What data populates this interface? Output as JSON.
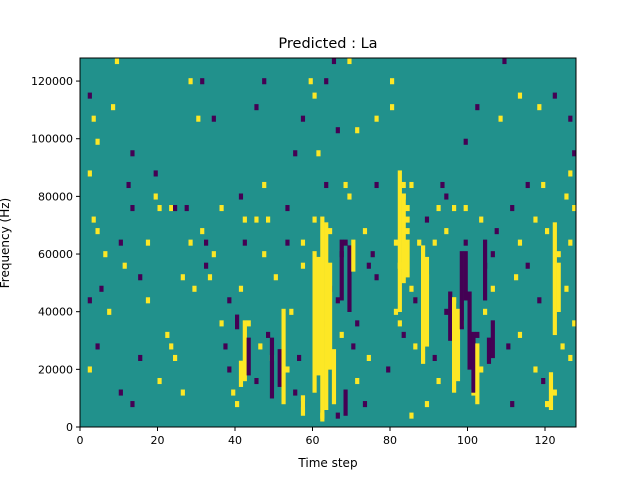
{
  "chart_data": {
    "type": "heatmap",
    "title": "Predicted : La",
    "xlabel": "Time step",
    "ylabel": "Frequency (Hz)",
    "xlim": [
      0,
      128
    ],
    "ylim": [
      0,
      128000
    ],
    "xticks": [
      0,
      20,
      40,
      60,
      80,
      100,
      120
    ],
    "yticks": [
      0,
      20000,
      40000,
      60000,
      80000,
      100000,
      120000
    ],
    "xtick_labels": [
      "0",
      "20",
      "40",
      "60",
      "80",
      "100",
      "120"
    ],
    "ytick_labels": [
      "0",
      "20000",
      "40000",
      "60000",
      "80000",
      "100000",
      "120000"
    ],
    "grid": false,
    "colormap": "viridis",
    "value_levels": [
      -1,
      0,
      1
    ],
    "level_colors": [
      "#440154",
      "#21918c",
      "#fde725"
    ],
    "background_value": 0,
    "n_time_steps": 128,
    "n_frequency_bins": 128,
    "active_cells": [
      {
        "t": 9,
        "f": 127,
        "v": 1
      },
      {
        "t": 65,
        "f": 127,
        "v": -1
      },
      {
        "t": 69,
        "f": 127,
        "v": 1
      },
      {
        "t": 109,
        "f": 127,
        "v": -1
      },
      {
        "t": 28,
        "f": 120,
        "v": 1
      },
      {
        "t": 31,
        "f": 120,
        "v": -1
      },
      {
        "t": 47,
        "f": 120,
        "v": -1
      },
      {
        "t": 59,
        "f": 120,
        "v": 1
      },
      {
        "t": 63,
        "f": 120,
        "v": -1
      },
      {
        "t": 80,
        "f": 120,
        "v": 1
      },
      {
        "t": 2,
        "f": 115,
        "v": -1
      },
      {
        "t": 60,
        "f": 115,
        "v": 1
      },
      {
        "t": 113,
        "f": 115,
        "v": 1
      },
      {
        "t": 122,
        "f": 115,
        "v": -1
      },
      {
        "t": 8,
        "f": 111,
        "v": 1
      },
      {
        "t": 45,
        "f": 111,
        "v": -1
      },
      {
        "t": 80,
        "f": 111,
        "v": 1
      },
      {
        "t": 102,
        "f": 111,
        "v": -1
      },
      {
        "t": 118,
        "f": 111,
        "v": 1
      },
      {
        "t": 3,
        "f": 107,
        "v": 1
      },
      {
        "t": 30,
        "f": 107,
        "v": 1
      },
      {
        "t": 34,
        "f": 107,
        "v": -1
      },
      {
        "t": 57,
        "f": 107,
        "v": -1
      },
      {
        "t": 76,
        "f": 107,
        "v": 1
      },
      {
        "t": 108,
        "f": 107,
        "v": 1
      },
      {
        "t": 126,
        "f": 107,
        "v": -1
      },
      {
        "t": 66,
        "f": 103,
        "v": -1
      },
      {
        "t": 71,
        "f": 103,
        "v": 1
      },
      {
        "t": 4,
        "f": 99,
        "v": 1
      },
      {
        "t": 99,
        "f": 99,
        "v": -1
      },
      {
        "t": 13,
        "f": 95,
        "v": -1
      },
      {
        "t": 55,
        "f": 95,
        "v": -1
      },
      {
        "t": 61,
        "f": 95,
        "v": 1
      },
      {
        "t": 127,
        "f": 95,
        "v": -1
      },
      {
        "t": 2,
        "f": 88,
        "v": 1
      },
      {
        "t": 19,
        "f": 88,
        "v": -1
      },
      {
        "t": 126,
        "f": 88,
        "v": 1
      },
      {
        "t": 12,
        "f": 84,
        "v": -1
      },
      {
        "t": 47,
        "f": 84,
        "v": 1
      },
      {
        "t": 63,
        "f": 84,
        "v": -1
      },
      {
        "t": 68,
        "f": 84,
        "v": 1
      },
      {
        "t": 76,
        "f": 84,
        "v": -1
      },
      {
        "t": 83,
        "f": 84,
        "v": 1
      },
      {
        "t": 85,
        "f": 84,
        "v": 1
      },
      {
        "t": 93,
        "f": 84,
        "v": -1
      },
      {
        "t": 115,
        "f": 84,
        "v": -1
      },
      {
        "t": 119,
        "f": 84,
        "v": 1
      },
      {
        "t": 19,
        "f": 80,
        "v": 1
      },
      {
        "t": 41,
        "f": 80,
        "v": -1
      },
      {
        "t": 69,
        "f": 80,
        "v": 1
      },
      {
        "t": 83,
        "f": 80,
        "v": 1
      },
      {
        "t": 94,
        "f": 80,
        "v": -1
      },
      {
        "t": 125,
        "f": 80,
        "v": 1
      },
      {
        "t": 13,
        "f": 76,
        "v": -1
      },
      {
        "t": 20,
        "f": 76,
        "v": 1
      },
      {
        "t": 23,
        "f": 76,
        "v": 1
      },
      {
        "t": 24,
        "f": 76,
        "v": -1
      },
      {
        "t": 27,
        "f": 76,
        "v": -1
      },
      {
        "t": 36,
        "f": 76,
        "v": 1
      },
      {
        "t": 53,
        "f": 76,
        "v": -1
      },
      {
        "t": 84,
        "f": 76,
        "v": 1
      },
      {
        "t": 92,
        "f": 76,
        "v": 1
      },
      {
        "t": 96,
        "f": 76,
        "v": 1
      },
      {
        "t": 99,
        "f": 76,
        "v": 1
      },
      {
        "t": 111,
        "f": 76,
        "v": -1
      },
      {
        "t": 127,
        "f": 76,
        "v": 1
      },
      {
        "t": 3,
        "f": 72,
        "v": 1
      },
      {
        "t": 42,
        "f": 72,
        "v": 1
      },
      {
        "t": 45,
        "f": 72,
        "v": 1
      },
      {
        "t": 48,
        "f": 72,
        "v": 1
      },
      {
        "t": 60,
        "f": 72,
        "v": 1
      },
      {
        "t": 84,
        "f": 72,
        "v": 1
      },
      {
        "t": 89,
        "f": 72,
        "v": -1
      },
      {
        "t": 103,
        "f": 72,
        "v": 1
      },
      {
        "t": 117,
        "f": 72,
        "v": 1
      },
      {
        "t": 4,
        "f": 68,
        "v": 1
      },
      {
        "t": 31,
        "f": 68,
        "v": 1
      },
      {
        "t": 64,
        "f": 68,
        "v": 1
      },
      {
        "t": 73,
        "f": 68,
        "v": 1
      },
      {
        "t": 84,
        "f": 68,
        "v": 1
      },
      {
        "t": 94,
        "f": 68,
        "v": 1
      },
      {
        "t": 107,
        "f": 68,
        "v": -1
      },
      {
        "t": 120,
        "f": 68,
        "v": 1
      },
      {
        "t": 10,
        "f": 64,
        "v": -1
      },
      {
        "t": 17,
        "f": 64,
        "v": 1
      },
      {
        "t": 28,
        "f": 64,
        "v": 1
      },
      {
        "t": 32,
        "f": 64,
        "v": -1
      },
      {
        "t": 42,
        "f": 64,
        "v": -1
      },
      {
        "t": 53,
        "f": 64,
        "v": -1
      },
      {
        "t": 57,
        "f": 64,
        "v": 1
      },
      {
        "t": 68,
        "f": 64,
        "v": -1
      },
      {
        "t": 81,
        "f": 64,
        "v": 1
      },
      {
        "t": 87,
        "f": 64,
        "v": 1
      },
      {
        "t": 91,
        "f": 64,
        "v": 1
      },
      {
        "t": 99,
        "f": 64,
        "v": -1
      },
      {
        "t": 113,
        "f": 64,
        "v": 1
      },
      {
        "t": 126,
        "f": 64,
        "v": 1
      },
      {
        "t": 6,
        "f": 60,
        "v": 1
      },
      {
        "t": 34,
        "f": 60,
        "v": 1
      },
      {
        "t": 47,
        "f": 60,
        "v": 1
      },
      {
        "t": 67,
        "f": 60,
        "v": -1
      },
      {
        "t": 75,
        "f": 60,
        "v": -1
      },
      {
        "t": 106,
        "f": 60,
        "v": -1
      },
      {
        "t": 123,
        "f": 60,
        "v": 1
      },
      {
        "t": 11,
        "f": 56,
        "v": 1
      },
      {
        "t": 32,
        "f": 56,
        "v": -1
      },
      {
        "t": 57,
        "f": 56,
        "v": 1
      },
      {
        "t": 74,
        "f": 56,
        "v": -1
      },
      {
        "t": 82,
        "f": 56,
        "v": 1
      },
      {
        "t": 104,
        "f": 56,
        "v": -1
      },
      {
        "t": 115,
        "f": 56,
        "v": -1
      },
      {
        "t": 15,
        "f": 52,
        "v": -1
      },
      {
        "t": 26,
        "f": 52,
        "v": 1
      },
      {
        "t": 33,
        "f": 52,
        "v": 1
      },
      {
        "t": 50,
        "f": 52,
        "v": 1
      },
      {
        "t": 76,
        "f": 52,
        "v": -1
      },
      {
        "t": 89,
        "f": 52,
        "v": 1
      },
      {
        "t": 112,
        "f": 52,
        "v": 1
      },
      {
        "t": 5,
        "f": 48,
        "v": -1
      },
      {
        "t": 29,
        "f": 48,
        "v": 1
      },
      {
        "t": 41,
        "f": 48,
        "v": 1
      },
      {
        "t": 64,
        "f": 48,
        "v": -1
      },
      {
        "t": 85,
        "f": 48,
        "v": 1
      },
      {
        "t": 106,
        "f": 48,
        "v": 1
      },
      {
        "t": 125,
        "f": 48,
        "v": 1
      },
      {
        "t": 2,
        "f": 44,
        "v": -1
      },
      {
        "t": 17,
        "f": 44,
        "v": 1
      },
      {
        "t": 38,
        "f": 44,
        "v": -1
      },
      {
        "t": 66,
        "f": 44,
        "v": -1
      },
      {
        "t": 86,
        "f": 44,
        "v": -1
      },
      {
        "t": 96,
        "f": 44,
        "v": 1
      },
      {
        "t": 118,
        "f": 44,
        "v": -1
      },
      {
        "t": 7,
        "f": 40,
        "v": 1
      },
      {
        "t": 54,
        "f": 40,
        "v": 1
      },
      {
        "t": 81,
        "f": 40,
        "v": 1
      },
      {
        "t": 94,
        "f": 40,
        "v": -1
      },
      {
        "t": 104,
        "f": 40,
        "v": 1
      },
      {
        "t": 36,
        "f": 36,
        "v": 1
      },
      {
        "t": 43,
        "f": 36,
        "v": 1
      },
      {
        "t": 63,
        "f": 36,
        "v": -1
      },
      {
        "t": 71,
        "f": 36,
        "v": -1
      },
      {
        "t": 82,
        "f": 36,
        "v": 1
      },
      {
        "t": 98,
        "f": 36,
        "v": 1
      },
      {
        "t": 127,
        "f": 36,
        "v": 1
      },
      {
        "t": 22,
        "f": 32,
        "v": 1
      },
      {
        "t": 48,
        "f": 32,
        "v": -1
      },
      {
        "t": 67,
        "f": 32,
        "v": 1
      },
      {
        "t": 83,
        "f": 32,
        "v": -1
      },
      {
        "t": 102,
        "f": 32,
        "v": -1
      },
      {
        "t": 113,
        "f": 32,
        "v": 1
      },
      {
        "t": 4,
        "f": 28,
        "v": -1
      },
      {
        "t": 23,
        "f": 28,
        "v": 1
      },
      {
        "t": 37,
        "f": 28,
        "v": -1
      },
      {
        "t": 46,
        "f": 28,
        "v": 1
      },
      {
        "t": 70,
        "f": 28,
        "v": -1
      },
      {
        "t": 86,
        "f": 28,
        "v": 1
      },
      {
        "t": 110,
        "f": 28,
        "v": -1
      },
      {
        "t": 124,
        "f": 28,
        "v": 1
      },
      {
        "t": 15,
        "f": 24,
        "v": -1
      },
      {
        "t": 24,
        "f": 24,
        "v": 1
      },
      {
        "t": 49,
        "f": 24,
        "v": 1
      },
      {
        "t": 56,
        "f": 24,
        "v": -1
      },
      {
        "t": 74,
        "f": 24,
        "v": 1
      },
      {
        "t": 91,
        "f": 24,
        "v": -1
      },
      {
        "t": 126,
        "f": 24,
        "v": 1
      },
      {
        "t": 2,
        "f": 20,
        "v": 1
      },
      {
        "t": 38,
        "f": 20,
        "v": -1
      },
      {
        "t": 53,
        "f": 20,
        "v": 1
      },
      {
        "t": 79,
        "f": 20,
        "v": -1
      },
      {
        "t": 103,
        "f": 20,
        "v": 1
      },
      {
        "t": 117,
        "f": 20,
        "v": 1
      },
      {
        "t": 20,
        "f": 16,
        "v": 1
      },
      {
        "t": 45,
        "f": 16,
        "v": -1
      },
      {
        "t": 71,
        "f": 16,
        "v": 1
      },
      {
        "t": 92,
        "f": 16,
        "v": 1
      },
      {
        "t": 119,
        "f": 16,
        "v": -1
      },
      {
        "t": 10,
        "f": 12,
        "v": -1
      },
      {
        "t": 26,
        "f": 12,
        "v": 1
      },
      {
        "t": 39,
        "f": 12,
        "v": 1
      },
      {
        "t": 55,
        "f": 12,
        "v": -1
      },
      {
        "t": 101,
        "f": 12,
        "v": 1
      },
      {
        "t": 122,
        "f": 12,
        "v": 1
      },
      {
        "t": 13,
        "f": 8,
        "v": -1
      },
      {
        "t": 40,
        "f": 8,
        "v": 1
      },
      {
        "t": 57,
        "f": 8,
        "v": -1
      },
      {
        "t": 73,
        "f": 8,
        "v": -1
      },
      {
        "t": 89,
        "f": 8,
        "v": 1
      },
      {
        "t": 111,
        "f": 8,
        "v": -1
      },
      {
        "t": 120,
        "f": 8,
        "v": 1
      },
      {
        "t": 62,
        "f": 4,
        "v": 1
      },
      {
        "t": 66,
        "f": 4,
        "v": -1
      },
      {
        "t": 85,
        "f": 4,
        "v": 1
      }
    ],
    "active_runs": [
      {
        "t": 40,
        "f_start": 34,
        "f_end": 38,
        "v": -1
      },
      {
        "t": 41,
        "f_start": 14,
        "f_end": 22,
        "v": 1
      },
      {
        "t": 42,
        "f_start": 16,
        "f_end": 36,
        "v": 1
      },
      {
        "t": 43,
        "f_start": 18,
        "f_end": 30,
        "v": -1
      },
      {
        "t": 49,
        "f_start": 10,
        "f_end": 30,
        "v": -1
      },
      {
        "t": 51,
        "f_start": 14,
        "f_end": 26,
        "v": -1
      },
      {
        "t": 52,
        "f_start": 8,
        "f_end": 40,
        "v": 1
      },
      {
        "t": 57,
        "f_start": 4,
        "f_end": 10,
        "v": 1
      },
      {
        "t": 60,
        "f_start": 12,
        "f_end": 60,
        "v": 1
      },
      {
        "t": 61,
        "f_start": 18,
        "f_end": 58,
        "v": 1
      },
      {
        "t": 62,
        "f_start": 2,
        "f_end": 72,
        "v": 1
      },
      {
        "t": 63,
        "f_start": 6,
        "f_end": 70,
        "v": 1
      },
      {
        "t": 64,
        "f_start": 20,
        "f_end": 56,
        "v": 1
      },
      {
        "t": 65,
        "f_start": 8,
        "f_end": 26,
        "v": 1
      },
      {
        "t": 67,
        "f_start": 44,
        "f_end": 64,
        "v": -1
      },
      {
        "t": 68,
        "f_start": 4,
        "f_end": 12,
        "v": -1
      },
      {
        "t": 69,
        "f_start": 40,
        "f_end": 62,
        "v": -1
      },
      {
        "t": 70,
        "f_start": 54,
        "f_end": 64,
        "v": 1
      },
      {
        "t": 82,
        "f_start": 40,
        "f_end": 88,
        "v": 1
      },
      {
        "t": 83,
        "f_start": 50,
        "f_end": 80,
        "v": 1
      },
      {
        "t": 84,
        "f_start": 52,
        "f_end": 64,
        "v": 1
      },
      {
        "t": 88,
        "f_start": 22,
        "f_end": 62,
        "v": 1
      },
      {
        "t": 89,
        "f_start": 28,
        "f_end": 58,
        "v": 1
      },
      {
        "t": 95,
        "f_start": 30,
        "f_end": 46,
        "v": -1
      },
      {
        "t": 96,
        "f_start": 12,
        "f_end": 44,
        "v": 1
      },
      {
        "t": 97,
        "f_start": 16,
        "f_end": 40,
        "v": 1
      },
      {
        "t": 98,
        "f_start": 34,
        "f_end": 60,
        "v": -1
      },
      {
        "t": 99,
        "f_start": 44,
        "f_end": 60,
        "v": -1
      },
      {
        "t": 100,
        "f_start": 20,
        "f_end": 46,
        "v": -1
      },
      {
        "t": 101,
        "f_start": 12,
        "f_end": 32,
        "v": -1
      },
      {
        "t": 102,
        "f_start": 8,
        "f_end": 28,
        "v": 1
      },
      {
        "t": 104,
        "f_start": 44,
        "f_end": 64,
        "v": -1
      },
      {
        "t": 105,
        "f_start": 22,
        "f_end": 30,
        "v": -1
      },
      {
        "t": 106,
        "f_start": 24,
        "f_end": 36,
        "v": -1
      },
      {
        "t": 121,
        "f_start": 6,
        "f_end": 18,
        "v": 1
      },
      {
        "t": 122,
        "f_start": 32,
        "f_end": 70,
        "v": 1
      },
      {
        "t": 123,
        "f_start": 40,
        "f_end": 56,
        "v": 1
      }
    ]
  }
}
